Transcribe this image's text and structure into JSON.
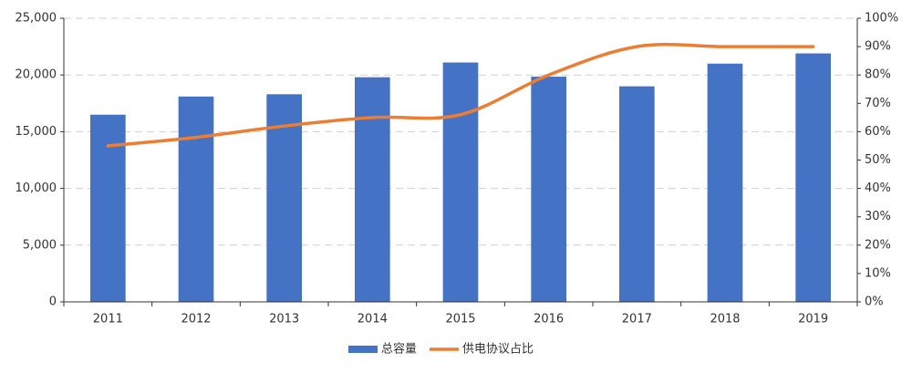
{
  "chart_data": {
    "type": "bar",
    "categories": [
      "2011",
      "2012",
      "2013",
      "2014",
      "2015",
      "2016",
      "2017",
      "2018",
      "2019"
    ],
    "series": [
      {
        "name": "总容量",
        "type": "bar",
        "color": "#4472c4",
        "values": [
          16500,
          18100,
          18300,
          19800,
          21100,
          19850,
          19000,
          21000,
          21900
        ]
      },
      {
        "name": "供电协议占比",
        "type": "line",
        "axis": "y2",
        "color": "#ed7d31",
        "values": [
          55,
          58,
          62,
          65,
          66,
          80,
          90,
          90,
          90
        ]
      }
    ],
    "ylim": [
      0,
      25000
    ],
    "yticks": [
      0,
      {
        "value": 5000,
        "label": "5,000"
      },
      {
        "value": 10000,
        "label": "10,000"
      },
      {
        "value": 15000,
        "label": "15,000"
      },
      {
        "value": 20000,
        "label": "20,000"
      },
      {
        "value": 25000,
        "label": "25,000"
      }
    ],
    "y2lim": [
      0,
      100
    ],
    "y2ticks": [
      {
        "value": 0,
        "label": "0%"
      },
      {
        "value": 10,
        "label": "10%"
      },
      {
        "value": 20,
        "label": "20%"
      },
      {
        "value": 30,
        "label": "30%"
      },
      {
        "value": 40,
        "label": "40%"
      },
      {
        "value": 50,
        "label": "50%"
      },
      {
        "value": 60,
        "label": "60%"
      },
      {
        "value": 70,
        "label": "70%"
      },
      {
        "value": 80,
        "label": "80%"
      },
      {
        "value": 90,
        "label": "90%"
      },
      {
        "value": 100,
        "label": "100%"
      }
    ],
    "grid": true,
    "legend": "bottom"
  }
}
